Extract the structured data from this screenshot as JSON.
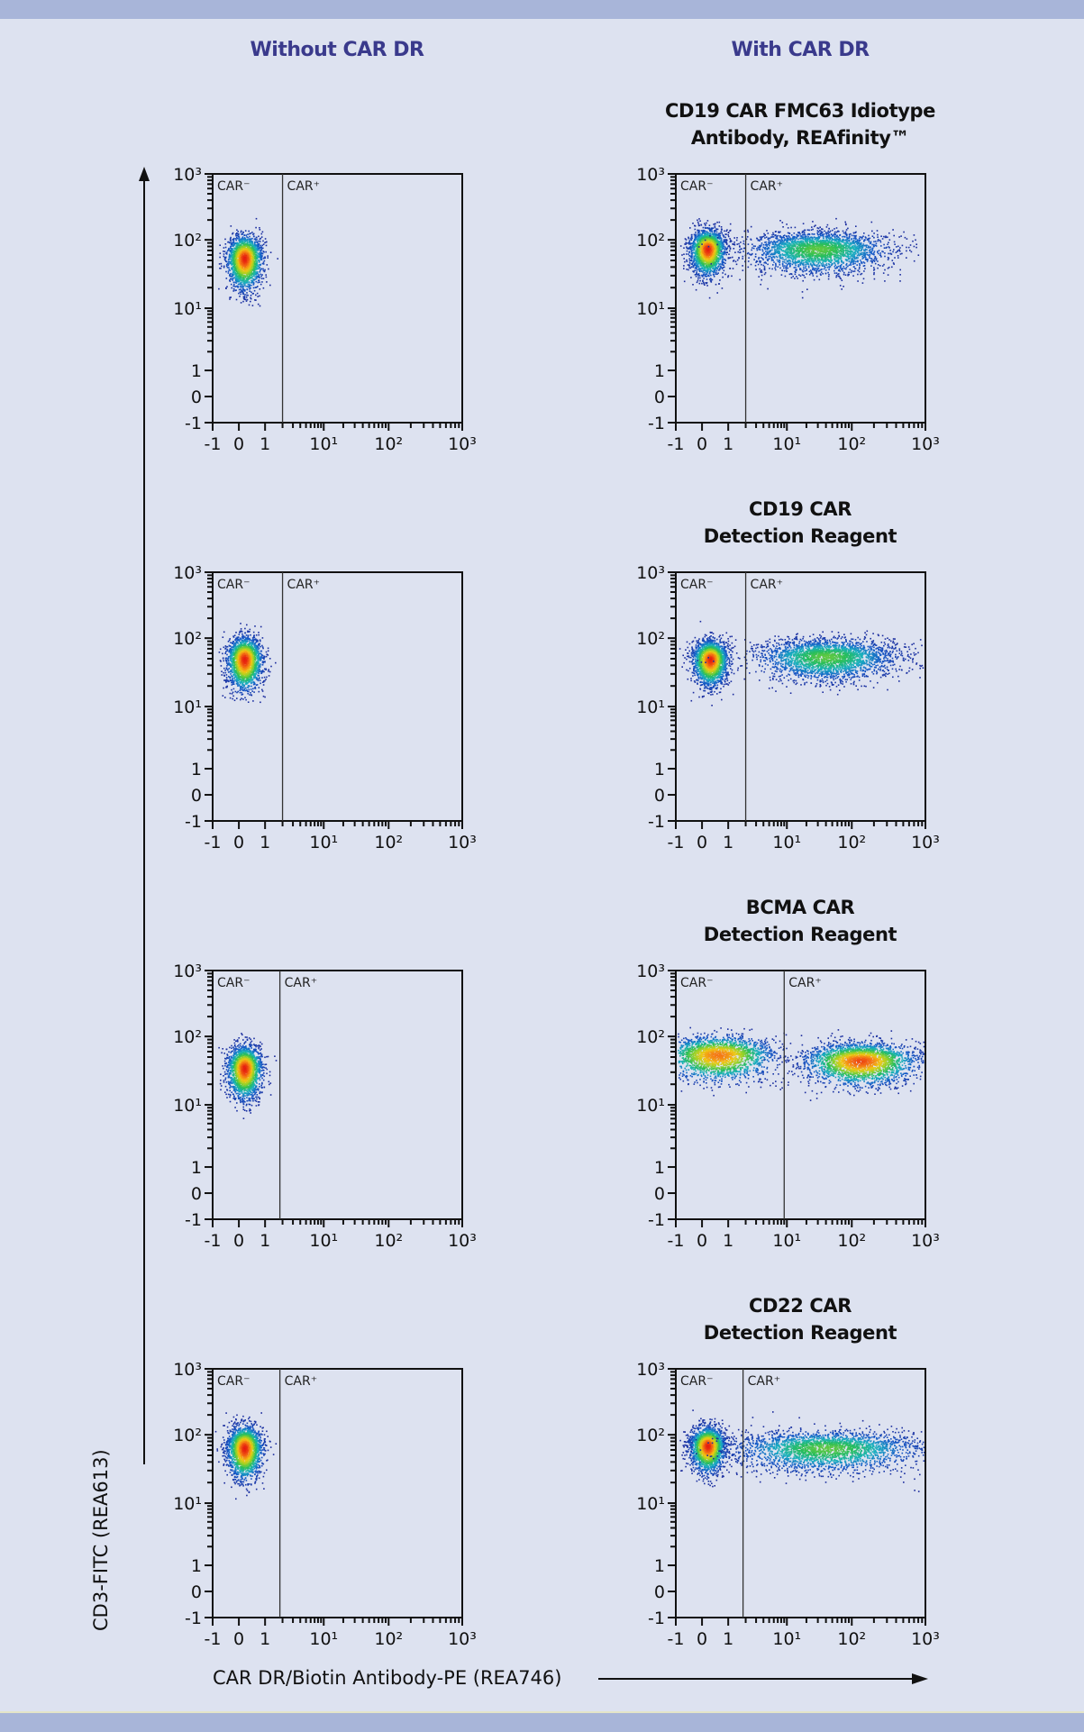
{
  "header": {
    "left_column_title": "Without CAR DR",
    "right_column_title": "With CAR DR"
  },
  "colors": {
    "background": "#dde2f0",
    "band": "#a8b5d9",
    "column_title": "#3a3a8c",
    "axis": "#111111",
    "density_low": "#1a2a9c",
    "density_mid": "#19b0c0",
    "density_high": "#e51b10"
  },
  "axes": {
    "y_label": "CD3-FITC (REA613)",
    "x_label": "CAR DR/Biotin Antibody-PE (REA746)",
    "tick_labels": [
      "-1",
      "0",
      "1",
      "10¹",
      "10²",
      "10³"
    ],
    "gate_labels": {
      "negative": "CAR⁻",
      "positive": "CAR⁺"
    }
  },
  "chart_data": [
    {
      "type": "scatter",
      "panel": "row1-left",
      "title": "",
      "column": "Without CAR DR",
      "xscale": "biexponential",
      "yscale": "biexponential",
      "xlim": [
        -1,
        1000
      ],
      "ylim": [
        -1,
        1000
      ],
      "gate_x": 2,
      "xlabel": "CAR DR/Biotin Antibody-PE (REA746)",
      "ylabel": "CD3-FITC (REA613)",
      "gates": [
        "CAR⁻",
        "CAR⁺"
      ],
      "populations": [
        {
          "name": "CAR⁻",
          "x_center": 0.2,
          "y_center": 55,
          "peak": "red"
        }
      ]
    },
    {
      "type": "scatter",
      "panel": "row1-right",
      "title": "CD19 CAR FMC63 Idiotype Antibody, REAfinity™",
      "column": "With CAR DR",
      "xscale": "biexponential",
      "yscale": "biexponential",
      "xlim": [
        -1,
        1000
      ],
      "ylim": [
        -1,
        1000
      ],
      "gate_x": 2,
      "gates": [
        "CAR⁻",
        "CAR⁺"
      ],
      "populations": [
        {
          "name": "CAR⁻",
          "x_center": 0.2,
          "y_center": 75,
          "peak": "red"
        },
        {
          "name": "CAR⁺",
          "x_center": 30,
          "y_center": 75,
          "peak": "green"
        }
      ]
    },
    {
      "type": "scatter",
      "panel": "row2-left",
      "title": "",
      "column": "Without CAR DR",
      "xlim": [
        -1,
        1000
      ],
      "ylim": [
        -1,
        1000
      ],
      "gate_x": 2,
      "gates": [
        "CAR⁻",
        "CAR⁺"
      ],
      "populations": [
        {
          "name": "CAR⁻",
          "x_center": 0.2,
          "y_center": 50,
          "peak": "red"
        }
      ]
    },
    {
      "type": "scatter",
      "panel": "row2-right",
      "title": "CD19 CAR Detection Reagent",
      "column": "With CAR DR",
      "xlim": [
        -1,
        1000
      ],
      "ylim": [
        -1,
        1000
      ],
      "gate_x": 2,
      "gates": [
        "CAR⁻",
        "CAR⁺"
      ],
      "populations": [
        {
          "name": "CAR⁻",
          "x_center": 0.3,
          "y_center": 50,
          "peak": "red"
        },
        {
          "name": "CAR⁺",
          "x_center": 40,
          "y_center": 55,
          "peak": "green"
        }
      ]
    },
    {
      "type": "scatter",
      "panel": "row3-left",
      "title": "",
      "column": "Without CAR DR",
      "xlim": [
        -1,
        1000
      ],
      "ylim": [
        -1,
        1000
      ],
      "gate_x": 1.8,
      "gates": [
        "CAR⁻",
        "CAR⁺"
      ],
      "populations": [
        {
          "name": "CAR⁻",
          "x_center": 0.2,
          "y_center": 35,
          "peak": "red"
        }
      ]
    },
    {
      "type": "scatter",
      "panel": "row3-right",
      "title": "BCMA CAR Detection Reagent",
      "column": "With CAR DR",
      "xlim": [
        -1,
        1000
      ],
      "ylim": [
        -1,
        1000
      ],
      "gate_x": 9,
      "gates": [
        "CAR⁻",
        "CAR⁺"
      ],
      "populations": [
        {
          "name": "CAR⁻",
          "x_center": 0.6,
          "y_center": 55,
          "peak": "orange"
        },
        {
          "name": "CAR⁺",
          "x_center": 130,
          "y_center": 45,
          "peak": "orange-red"
        }
      ]
    },
    {
      "type": "scatter",
      "panel": "row4-left",
      "title": "",
      "column": "Without CAR DR",
      "xlim": [
        -1,
        1000
      ],
      "ylim": [
        -1,
        1000
      ],
      "gate_x": 1.8,
      "gates": [
        "CAR⁻",
        "CAR⁺"
      ],
      "populations": [
        {
          "name": "CAR⁻",
          "x_center": 0.2,
          "y_center": 65,
          "peak": "red"
        }
      ]
    },
    {
      "type": "scatter",
      "panel": "row4-right",
      "title": "CD22 CAR Detection Reagent",
      "column": "With CAR DR",
      "xlim": [
        -1,
        1000
      ],
      "ylim": [
        -1,
        1000
      ],
      "gate_x": 1.8,
      "gates": [
        "CAR⁻",
        "CAR⁺"
      ],
      "populations": [
        {
          "name": "CAR⁻",
          "x_center": 0.2,
          "y_center": 70,
          "peak": "red"
        },
        {
          "name": "CAR⁺",
          "x_center": 40,
          "y_center": 65,
          "peak": "green"
        }
      ]
    }
  ],
  "panels": {
    "r1r": {
      "title_line1": "CD19 CAR FMC63 Idiotype",
      "title_line2": "Antibody, REAfinity™"
    },
    "r2r": {
      "title_line1": "CD19 CAR",
      "title_line2": "Detection Reagent"
    },
    "r3r": {
      "title_line1": "BCMA CAR",
      "title_line2": "Detection Reagent"
    },
    "r4r": {
      "title_line1": "CD22 CAR",
      "title_line2": "Detection Reagent"
    }
  }
}
